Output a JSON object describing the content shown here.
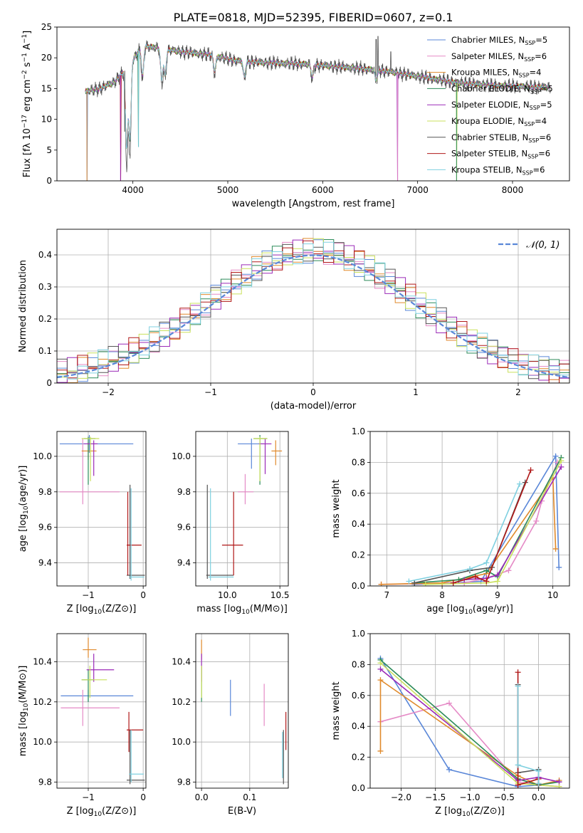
{
  "figure": {
    "title": "PLATE=0818, MJD=52395, FIBERID=0607, z=0.1"
  },
  "series_colors": [
    "#5a87d8",
    "#e58ac6",
    "#e08a2c",
    "#2c8b5a",
    "#9b2ab8",
    "#c9e05c",
    "#555555",
    "#b01818",
    "#7fd0e0"
  ],
  "series_names": [
    "Chabrier MILES, N_SSP=5",
    "Salpeter MILES, N_SSP=6",
    "Kroupa MILES, N_SSP=4",
    "Chabrier ELODIE, N_SSP=5",
    "Salpeter ELODIE, N_SSP=5",
    "Kroupa ELODIE, N_SSP=4",
    "Chabrier STELIB, N_SSP=6",
    "Salpeter STELIB, N_SSP=6",
    "Kroupa STELIB, N_SSP=6"
  ],
  "chart_data": [
    {
      "id": "spectrum",
      "type": "line",
      "xlabel": "wavelength [Angstrom, rest frame]",
      "ylabel": "Flux [f_λ 10^-17 erg cm^-2 s^-1 A^-1]",
      "xlim": [
        3200,
        8600
      ],
      "ylim": [
        0,
        25
      ],
      "xticks": [
        4000,
        5000,
        6000,
        7000,
        8000
      ],
      "yticks": [
        0,
        5,
        10,
        15,
        20,
        25
      ],
      "grid": false,
      "legend": "upper right",
      "continuum": [
        [
          3500,
          14.5
        ],
        [
          3650,
          15
        ],
        [
          3800,
          16
        ],
        [
          3950,
          18.5
        ],
        [
          4100,
          22
        ],
        [
          4300,
          21.5
        ],
        [
          4500,
          21
        ],
        [
          4800,
          20.5
        ],
        [
          5100,
          19.5
        ],
        [
          5400,
          19.2
        ],
        [
          5800,
          19
        ],
        [
          6200,
          18.5
        ],
        [
          6600,
          18
        ],
        [
          7000,
          17
        ],
        [
          7400,
          16
        ],
        [
          7800,
          15.5
        ],
        [
          8200,
          15.3
        ],
        [
          8400,
          15.2
        ]
      ],
      "absorption_lines": [
        [
          3934,
          16
        ],
        [
          3969,
          15
        ],
        [
          4102,
          6
        ],
        [
          4304,
          6
        ],
        [
          4340,
          5
        ],
        [
          4861,
          3
        ],
        [
          5175,
          3
        ],
        [
          5890,
          2.5
        ],
        [
          6563,
          2
        ]
      ],
      "data_spikes": [
        [
          6563,
          23
        ],
        [
          6583,
          23.5
        ],
        [
          6717,
          21
        ]
      ],
      "drop_outs": [
        [
          3516,
          0
        ],
        [
          3870,
          0
        ],
        [
          3914,
          8
        ],
        [
          4060,
          5.5
        ],
        [
          6790,
          0
        ],
        [
          7410,
          0
        ]
      ]
    },
    {
      "id": "residuals",
      "type": "step",
      "xlabel": "(data-model)/error",
      "ylabel": "Normed distribution",
      "xlim": [
        -2.5,
        2.5
      ],
      "ylim": [
        0,
        0.48
      ],
      "xticks": [
        -2,
        -1,
        0,
        1,
        2
      ],
      "yticks": [
        0,
        0.1,
        0.2,
        0.3,
        0.4
      ],
      "grid": true,
      "legend": "upper right",
      "gaussian_label": "𝒩(0, 1)",
      "gaussian_color": "#5a87d8",
      "bin_width": 0.1
    },
    {
      "id": "age_vs_Z",
      "type": "errorbar",
      "xlabel": "Z [log10(Z/Z⊙)]",
      "ylabel": "age [log10(age/yr)]",
      "xlim": [
        -1.57,
        0.05
      ],
      "ylim": [
        9.27,
        10.14
      ],
      "xticks": [
        -1,
        0
      ],
      "yticks": [
        9.4,
        9.6,
        9.8,
        10.0
      ],
      "grid": true,
      "points": [
        {
          "x": -0.98,
          "xlo": -1.52,
          "xhi": -0.18,
          "y": 10.07,
          "ylo": 10.02,
          "yhi": 10.12,
          "color": 0
        },
        {
          "x": -1.1,
          "xlo": -1.52,
          "xhi": -0.43,
          "y": 9.8,
          "ylo": 9.73,
          "yhi": 10.1,
          "color": 1
        },
        {
          "x": -1.0,
          "xlo": -1.12,
          "xhi": -0.85,
          "y": 10.03,
          "ylo": 9.98,
          "yhi": 10.08,
          "color": 2
        },
        {
          "x": -1.0,
          "xlo": -1.08,
          "xhi": -0.87,
          "y": 10.1,
          "ylo": 9.84,
          "yhi": 10.11,
          "color": 3
        },
        {
          "x": -0.9,
          "xlo": -1.08,
          "xhi": -0.83,
          "y": 10.07,
          "ylo": 9.89,
          "yhi": 10.09,
          "color": 4
        },
        {
          "x": -0.96,
          "xlo": -1.12,
          "xhi": -0.8,
          "y": 10.1,
          "ylo": 9.86,
          "yhi": 10.11,
          "color": 5
        },
        {
          "x": -0.24,
          "xlo": -0.3,
          "xhi": 0.03,
          "y": 9.33,
          "ylo": 9.31,
          "yhi": 9.84,
          "color": 6
        },
        {
          "x": -0.28,
          "xlo": -0.3,
          "xhi": -0.03,
          "y": 9.5,
          "ylo": 9.33,
          "yhi": 9.8,
          "color": 7
        },
        {
          "x": -0.22,
          "xlo": -0.26,
          "xhi": 0.02,
          "y": 9.32,
          "ylo": 9.3,
          "yhi": 9.82,
          "color": 8
        }
      ]
    },
    {
      "id": "age_vs_mass",
      "type": "errorbar",
      "xlabel": "mass [log10(M/M⊙)]",
      "ylabel": "",
      "xlim": [
        9.7,
        10.58
      ],
      "ylim": [
        9.27,
        10.14
      ],
      "xticks": [
        10.0,
        10.5
      ],
      "yticks": [
        9.4,
        9.6,
        9.8,
        10.0
      ],
      "grid": true,
      "points": [
        {
          "x": 10.23,
          "xlo": 10.1,
          "xhi": 10.35,
          "y": 10.07,
          "ylo": 9.93,
          "yhi": 10.1,
          "color": 0
        },
        {
          "x": 10.17,
          "xlo": 10.1,
          "xhi": 10.25,
          "y": 9.8,
          "ylo": 9.73,
          "yhi": 9.9,
          "color": 1
        },
        {
          "x": 10.46,
          "xlo": 10.42,
          "xhi": 10.52,
          "y": 10.03,
          "ylo": 9.95,
          "yhi": 10.09,
          "color": 2
        },
        {
          "x": 10.31,
          "xlo": 10.25,
          "xhi": 10.38,
          "y": 10.1,
          "ylo": 9.84,
          "yhi": 10.12,
          "color": 3
        },
        {
          "x": 10.36,
          "xlo": 10.3,
          "xhi": 10.42,
          "y": 10.07,
          "ylo": 9.9,
          "yhi": 10.1,
          "color": 4
        },
        {
          "x": 10.31,
          "xlo": 10.25,
          "xhi": 10.38,
          "y": 10.1,
          "ylo": 9.86,
          "yhi": 10.11,
          "color": 5
        },
        {
          "x": 9.81,
          "xlo": 9.8,
          "xhi": 10.06,
          "y": 9.33,
          "ylo": 9.31,
          "yhi": 9.84,
          "color": 6
        },
        {
          "x": 10.06,
          "xlo": 9.95,
          "xhi": 10.15,
          "y": 9.5,
          "ylo": 9.33,
          "yhi": 9.8,
          "color": 7
        },
        {
          "x": 9.84,
          "xlo": 9.82,
          "xhi": 10.06,
          "y": 9.32,
          "ylo": 9.3,
          "yhi": 9.82,
          "color": 8
        }
      ]
    },
    {
      "id": "weight_vs_age",
      "type": "line",
      "xlabel": "age [log10(age/yr)]",
      "ylabel": "mass weight",
      "xlim": [
        6.7,
        10.3
      ],
      "ylim": [
        0,
        1.0
      ],
      "xticks": [
        7,
        8,
        9,
        10
      ],
      "yticks": [
        0,
        0.2,
        0.4,
        0.6,
        0.8,
        1.0
      ],
      "grid": true,
      "series": [
        {
          "color": 0,
          "x": [
            7.5,
            8.2,
            8.7,
            10.05,
            10.11
          ],
          "y": [
            0.01,
            0.02,
            0.03,
            0.84,
            0.12
          ]
        },
        {
          "color": 1,
          "x": [
            6.9,
            8.4,
            8.8,
            9.2,
            9.7,
            9.8,
            10.08
          ],
          "y": [
            0.01,
            0.02,
            0.05,
            0.1,
            0.42,
            0.55,
            0.8
          ]
        },
        {
          "color": 2,
          "x": [
            6.9,
            8.0,
            8.8,
            10.0,
            10.05
          ],
          "y": [
            0.01,
            0.02,
            0.08,
            0.7,
            0.24
          ]
        },
        {
          "color": 3,
          "x": [
            7.5,
            8.3,
            8.8,
            9.0,
            10.15
          ],
          "y": [
            0.02,
            0.04,
            0.1,
            0.06,
            0.83
          ]
        },
        {
          "color": 4,
          "x": [
            8.4,
            8.8,
            9.0,
            10.15
          ],
          "y": [
            0.04,
            0.05,
            0.07,
            0.77
          ]
        },
        {
          "color": 5,
          "x": [
            7.7,
            8.8,
            9.0,
            10.15
          ],
          "y": [
            0.01,
            0.02,
            0.03,
            0.81
          ]
        },
        {
          "color": 6,
          "x": [
            7.5,
            8.5,
            8.9,
            9.5
          ],
          "y": [
            0.02,
            0.1,
            0.12,
            0.67
          ]
        },
        {
          "color": 7,
          "x": [
            8.2,
            8.6,
            8.8,
            9.6
          ],
          "y": [
            0.02,
            0.06,
            0.03,
            0.75
          ]
        },
        {
          "color": 8,
          "x": [
            7.4,
            8.5,
            8.8,
            9.4
          ],
          "y": [
            0.03,
            0.11,
            0.15,
            0.66
          ]
        }
      ]
    },
    {
      "id": "mass_vs_Z",
      "type": "errorbar",
      "xlabel": "Z [log10(Z/Z⊙)]",
      "ylabel": "mass [log10(M/M⊙)]",
      "xlim": [
        -1.57,
        0.05
      ],
      "ylim": [
        9.77,
        10.54
      ],
      "xticks": [
        -1,
        0
      ],
      "yticks": [
        9.8,
        10.0,
        10.2,
        10.4
      ],
      "grid": true,
      "points": [
        {
          "x": -1.0,
          "xlo": -1.5,
          "xhi": -0.18,
          "y": 10.23,
          "ylo": 10.2,
          "yhi": 10.26,
          "color": 0
        },
        {
          "x": -1.1,
          "xlo": -1.5,
          "xhi": -0.43,
          "y": 10.17,
          "ylo": 10.08,
          "yhi": 10.26,
          "color": 1
        },
        {
          "x": -1.0,
          "xlo": -1.1,
          "xhi": -0.85,
          "y": 10.46,
          "ylo": 10.42,
          "yhi": 10.52,
          "color": 2
        },
        {
          "x": -1.0,
          "xlo": -1.12,
          "xhi": -0.9,
          "y": 10.31,
          "ylo": 10.2,
          "yhi": 10.36,
          "color": 3
        },
        {
          "x": -0.9,
          "xlo": -1.03,
          "xhi": -0.53,
          "y": 10.36,
          "ylo": 10.3,
          "yhi": 10.44,
          "color": 4
        },
        {
          "x": -0.97,
          "xlo": -1.12,
          "xhi": -0.66,
          "y": 10.31,
          "ylo": 10.22,
          "yhi": 10.38,
          "color": 5
        },
        {
          "x": -0.24,
          "xlo": -0.3,
          "xhi": 0.03,
          "y": 9.81,
          "ylo": 9.79,
          "yhi": 10.06,
          "color": 6
        },
        {
          "x": -0.26,
          "xlo": -0.3,
          "xhi": 0.0,
          "y": 10.06,
          "ylo": 9.95,
          "yhi": 10.15,
          "color": 7
        },
        {
          "x": -0.22,
          "xlo": -0.26,
          "xhi": 0.01,
          "y": 9.84,
          "ylo": 9.8,
          "yhi": 10.06,
          "color": 8
        }
      ]
    },
    {
      "id": "mass_vs_ebv",
      "type": "errorbar",
      "xlabel": "E(B-V)",
      "ylabel": "",
      "xlim": [
        -0.012,
        0.18
      ],
      "ylim": [
        9.77,
        10.54
      ],
      "xticks": [
        0.0,
        0.1
      ],
      "yticks": [
        9.8,
        10.0,
        10.2,
        10.4
      ],
      "grid": true,
      "points": [
        {
          "x": 0.06,
          "xlo": 0.06,
          "xhi": 0.06,
          "y": 10.23,
          "ylo": 10.13,
          "yhi": 10.31,
          "color": 0
        },
        {
          "x": 0.13,
          "xlo": 0.13,
          "xhi": 0.13,
          "y": 10.17,
          "ylo": 10.08,
          "yhi": 10.29,
          "color": 1
        },
        {
          "x": 0.0,
          "xlo": 0.0,
          "xhi": 0.0,
          "y": 10.46,
          "ylo": 10.41,
          "yhi": 10.51,
          "color": 2
        },
        {
          "x": 0.0,
          "xlo": 0.0,
          "xhi": 0.0,
          "y": 10.31,
          "ylo": 10.2,
          "yhi": 10.38,
          "color": 3
        },
        {
          "x": 0.0,
          "xlo": 0.0,
          "xhi": 0.0,
          "y": 10.36,
          "ylo": 10.3,
          "yhi": 10.44,
          "color": 4
        },
        {
          "x": 0.0,
          "xlo": 0.0,
          "xhi": 0.0,
          "y": 10.31,
          "ylo": 10.22,
          "yhi": 10.38,
          "color": 5
        },
        {
          "x": 0.17,
          "xlo": 0.17,
          "xhi": 0.17,
          "y": 9.81,
          "ylo": 9.79,
          "yhi": 10.06,
          "color": 6
        },
        {
          "x": 0.175,
          "xlo": 0.175,
          "xhi": 0.175,
          "y": 10.06,
          "ylo": 9.96,
          "yhi": 10.15,
          "color": 7
        },
        {
          "x": 0.168,
          "xlo": 0.168,
          "xhi": 0.168,
          "y": 9.84,
          "ylo": 9.82,
          "yhi": 10.05,
          "color": 8
        }
      ]
    },
    {
      "id": "weight_vs_Z",
      "type": "line",
      "xlabel": "Z [log10(Z/Z⊙)]",
      "ylabel": "mass weight",
      "xlim": [
        -2.45,
        0.45
      ],
      "ylim": [
        0,
        1.0
      ],
      "xticks": [
        -2.0,
        -1.5,
        -1.0,
        -0.5,
        0.0
      ],
      "yticks": [
        0,
        0.2,
        0.4,
        0.6,
        0.8,
        1.0
      ],
      "grid": true,
      "series": [
        {
          "color": 0,
          "x": [
            -2.3,
            -1.3,
            -0.3,
            0.0
          ],
          "y": [
            0.84,
            0.12,
            0.01,
            0.02
          ]
        },
        {
          "color": 1,
          "x": [
            -2.3,
            -1.3,
            -0.3,
            0.0,
            0.3
          ],
          "y": [
            0.43,
            0.55,
            0.04,
            0.02,
            0.01
          ]
        },
        {
          "color": 2,
          "x": [
            -2.3,
            -2.3,
            -0.3,
            0.0,
            0.3
          ],
          "y": [
            0.24,
            0.7,
            0.08,
            0.02,
            0.05
          ]
        },
        {
          "color": 3,
          "x": [
            -2.3,
            -0.3,
            0.0,
            0.3
          ],
          "y": [
            0.83,
            0.06,
            0.02,
            0.04
          ]
        },
        {
          "color": 4,
          "x": [
            -2.3,
            -0.3,
            0.0,
            0.3
          ],
          "y": [
            0.77,
            0.05,
            0.07,
            0.04
          ]
        },
        {
          "color": 5,
          "x": [
            -2.3,
            -0.3,
            0.0,
            0.3
          ],
          "y": [
            0.81,
            0.03,
            0.02,
            0.01
          ]
        },
        {
          "color": 6,
          "x": [
            -0.3,
            -0.3,
            0.0,
            0.0
          ],
          "y": [
            0.67,
            0.1,
            0.12,
            0.02
          ]
        },
        {
          "color": 7,
          "x": [
            -0.3,
            -0.3,
            0.0,
            0.0
          ],
          "y": [
            0.75,
            0.02,
            0.06,
            0.03
          ]
        },
        {
          "color": 8,
          "x": [
            -0.3,
            -0.3,
            0.0,
            0.0
          ],
          "y": [
            0.66,
            0.15,
            0.11,
            0.03
          ]
        }
      ]
    }
  ]
}
